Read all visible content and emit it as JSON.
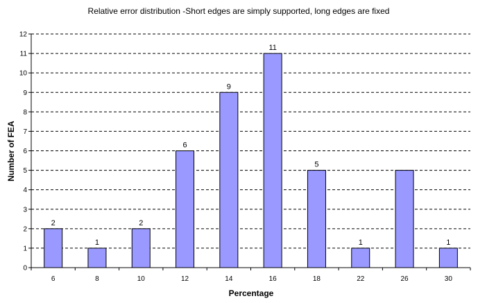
{
  "chart_data": {
    "type": "bar",
    "title": "Relative error distribution -Short edges  are simply supported, long edges are fixed",
    "xlabel": "Percentage",
    "ylabel": "Number of FEA",
    "categories": [
      "6",
      "8",
      "10",
      "12",
      "14",
      "16",
      "18",
      "22",
      "26",
      "30"
    ],
    "values": [
      2,
      1,
      2,
      6,
      9,
      11,
      5,
      1,
      5,
      1
    ],
    "data_labels": [
      "2",
      "1",
      "2",
      "6",
      "9",
      "11",
      "5",
      "1",
      "",
      "1"
    ],
    "ylim": [
      0,
      12
    ],
    "yticks": [
      "0",
      "1",
      "2",
      "3",
      "4",
      "5",
      "6",
      "7",
      "8",
      "9",
      "10",
      "11",
      "12"
    ],
    "grid": true,
    "legend": "none",
    "colors": {
      "bar_fill": "#9999ff",
      "bar_stroke": "#000000",
      "grid": "#000000"
    }
  }
}
